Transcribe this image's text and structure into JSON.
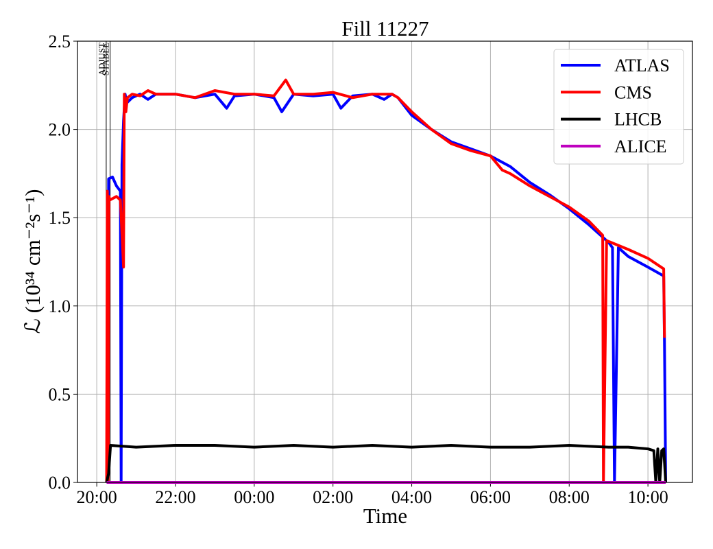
{
  "chart_data": {
    "type": "line",
    "title": "Fill 11227",
    "x_label": "Time",
    "y_label": "ℒ (10³⁴ cm⁻²s⁻¹)",
    "xlim": [
      -0.49,
      15.13
    ],
    "ylim": [
      0,
      2.5
    ],
    "xticks": [
      {
        "value": 0,
        "label": "20:00"
      },
      {
        "value": 2,
        "label": "22:00"
      },
      {
        "value": 4,
        "label": "00:00"
      },
      {
        "value": 6,
        "label": "02:00"
      },
      {
        "value": 8,
        "label": "04:00"
      },
      {
        "value": 10,
        "label": "06:00"
      },
      {
        "value": 12,
        "label": "08:00"
      },
      {
        "value": 14,
        "label": "10:00"
      }
    ],
    "yticks": [
      {
        "value": 0,
        "label": "0.0"
      },
      0.5,
      {
        "value": 1,
        "label": "1.0"
      },
      1.5,
      {
        "value": 2,
        "label": "2.0"
      },
      2.5
    ],
    "grid": true,
    "legend": "upper right",
    "annotations": [
      {
        "x": 0.24,
        "text": "ADJUST"
      },
      {
        "x": 0.34,
        "text": "STABLE"
      }
    ],
    "series": [
      {
        "name": "ATLAS",
        "color": "#0000ff",
        "x": [
          0.27,
          0.3,
          0.4,
          0.5,
          0.6,
          0.62,
          0.64,
          0.68,
          0.72,
          0.76,
          0.9,
          1.1,
          1.3,
          1.5,
          2,
          2.5,
          3,
          3.3,
          3.5,
          4,
          4.5,
          4.7,
          5,
          5.5,
          6,
          6.2,
          6.5,
          7,
          7.3,
          7.5,
          7.65,
          8,
          8.5,
          9,
          9.5,
          10,
          10.5,
          11,
          11.5,
          12,
          12.5,
          13,
          13.1,
          13.15,
          13.25,
          13.3,
          13.5,
          14,
          14.4,
          14.42,
          14.45
        ],
        "values": [
          0,
          1.72,
          1.73,
          1.68,
          1.65,
          0,
          1.8,
          2.05,
          2.2,
          2.15,
          2.18,
          2.2,
          2.17,
          2.2,
          2.2,
          2.18,
          2.2,
          2.12,
          2.19,
          2.2,
          2.18,
          2.1,
          2.2,
          2.19,
          2.2,
          2.12,
          2.19,
          2.2,
          2.17,
          2.2,
          2.18,
          2.08,
          2.0,
          1.93,
          1.89,
          1.85,
          1.79,
          1.7,
          1.63,
          1.55,
          1.46,
          1.36,
          1.33,
          0,
          1.33,
          1.32,
          1.28,
          1.22,
          1.17,
          0.8,
          0
        ]
      },
      {
        "name": "CMS",
        "color": "#ff0000",
        "x": [
          0.25,
          0.27,
          0.29,
          0.31,
          0.33,
          0.5,
          0.6,
          0.68,
          0.7,
          0.74,
          0.78,
          0.9,
          1.1,
          1.3,
          1.5,
          2,
          2.5,
          3,
          3.5,
          4,
          4.5,
          4.8,
          5,
          5.5,
          6,
          6.5,
          7,
          7.5,
          7.65,
          8,
          8.5,
          9,
          9.5,
          10,
          10.3,
          10.5,
          11,
          11.5,
          12,
          12.5,
          12.85,
          12.87,
          12.95,
          13.5,
          14,
          14.4,
          14.42
        ],
        "values": [
          0,
          1.65,
          0,
          1.62,
          1.6,
          1.62,
          1.6,
          1.22,
          2.2,
          2.1,
          2.18,
          2.2,
          2.19,
          2.22,
          2.2,
          2.2,
          2.18,
          2.22,
          2.2,
          2.2,
          2.19,
          2.28,
          2.2,
          2.2,
          2.21,
          2.18,
          2.2,
          2.2,
          2.18,
          2.1,
          2.0,
          1.92,
          1.88,
          1.85,
          1.77,
          1.75,
          1.68,
          1.62,
          1.56,
          1.48,
          1.4,
          0,
          1.37,
          1.32,
          1.27,
          1.21,
          0.82
        ]
      },
      {
        "name": "LHCB",
        "color": "#000000",
        "x": [
          0.25,
          0.3,
          0.35,
          1,
          2,
          3,
          4,
          5,
          6,
          7,
          8,
          9,
          10,
          11,
          12,
          13,
          13.5,
          14,
          14.15,
          14.2,
          14.25,
          14.3,
          14.35,
          14.4,
          14.45
        ],
        "values": [
          0,
          0.05,
          0.21,
          0.2,
          0.21,
          0.21,
          0.2,
          0.21,
          0.2,
          0.21,
          0.2,
          0.21,
          0.2,
          0.2,
          0.21,
          0.2,
          0.2,
          0.19,
          0.18,
          0,
          0.19,
          0,
          0.18,
          0.19,
          0
        ]
      },
      {
        "name": "ALICE",
        "color": "#bf00bf",
        "x": [
          0.25,
          14.45
        ],
        "values": [
          0,
          0
        ]
      }
    ]
  }
}
